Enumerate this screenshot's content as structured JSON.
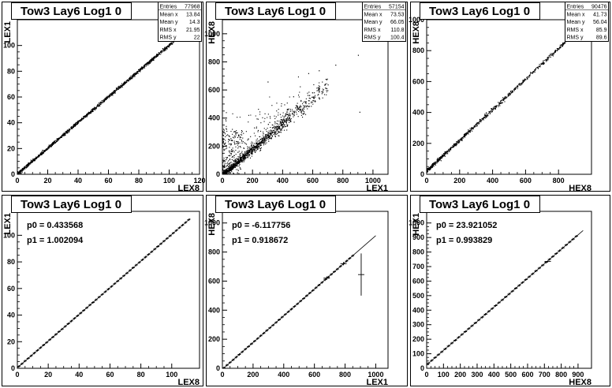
{
  "chart_data": [
    {
      "type": "scatter",
      "title": "Tow3 Lay6 Log1 0",
      "xlabel": "LEX8",
      "ylabel": "LEX1",
      "xlim": [
        0,
        120
      ],
      "ylim": [
        0,
        120
      ],
      "xticks": [
        0,
        20,
        40,
        60,
        80,
        100,
        120
      ],
      "yticks": [
        0,
        20,
        40,
        60,
        80,
        100
      ],
      "stats": [
        {
          "label": "Entries",
          "value": "77968"
        },
        {
          "label": "Mean x",
          "value": "13.84"
        },
        {
          "label": "Mean y",
          "value": "14.3"
        },
        {
          "label": "RMS x",
          "value": "21.95"
        },
        {
          "label": "RMS y",
          "value": "22"
        }
      ],
      "trend": {
        "p0": 0.43,
        "p1": 1.0,
        "x_from": 0,
        "x_to": 115
      }
    },
    {
      "type": "scatter",
      "title": "Tow3 Lay6 Log1 0",
      "xlabel": "LEX1",
      "ylabel": "HEX8",
      "xlim": [
        0,
        1100
      ],
      "ylim": [
        0,
        1100
      ],
      "xticks": [
        0,
        200,
        400,
        600,
        800,
        1000
      ],
      "yticks": [
        0,
        200,
        400,
        600,
        800,
        1000
      ],
      "stats": [
        {
          "label": "Entries",
          "value": "57154"
        },
        {
          "label": "Mean x",
          "value": "73.53"
        },
        {
          "label": "Mean y",
          "value": "66.05"
        },
        {
          "label": "RMS x",
          "value": "110.8"
        },
        {
          "label": "RMS y",
          "value": "100.4"
        }
      ],
      "trend": {
        "p0": -6.1,
        "p1": 0.92,
        "x_from": 0,
        "x_to": 900
      }
    },
    {
      "type": "scatter",
      "title": "Tow3 Lay6 Log1 0",
      "xlabel": "HEX8",
      "ylabel": "HEX8",
      "xlim": [
        0,
        1000
      ],
      "ylim": [
        0,
        1000
      ],
      "xticks": [
        0,
        200,
        400,
        600,
        800
      ],
      "yticks": [
        0,
        200,
        400,
        600,
        800,
        1000
      ],
      "stats": [
        {
          "label": "Entries",
          "value": "90476"
        },
        {
          "label": "Mean x",
          "value": "41.73"
        },
        {
          "label": "Mean y",
          "value": "56.04"
        },
        {
          "label": "RMS x",
          "value": "85.9"
        },
        {
          "label": "RMS y",
          "value": "89.6"
        }
      ],
      "trend": {
        "p0": 23.9,
        "p1": 0.99,
        "x_from": 0,
        "x_to": 900
      }
    },
    {
      "type": "line",
      "title": "Tow3 Lay6 Log1 0",
      "xlabel": "LEX8",
      "ylabel": "LEX1",
      "xlim": [
        0,
        118
      ],
      "ylim": [
        0,
        118
      ],
      "xticks": [
        0,
        20,
        40,
        60,
        80,
        100
      ],
      "yticks": [
        0,
        20,
        40,
        60,
        80,
        100
      ],
      "fit": {
        "p0_label": "p0 = 0.433568",
        "p1_label": "p1 = 1.002094",
        "p0": 0.433568,
        "p1": 1.002094,
        "x_from": 0,
        "x_to": 112
      },
      "profile": {
        "x_from": 1,
        "x_to": 111,
        "step": 2
      },
      "outliers": []
    },
    {
      "type": "line",
      "title": "Tow3 Lay6 Log1 0",
      "xlabel": "LEX1",
      "ylabel": "HEX8",
      "xlim": [
        0,
        1080
      ],
      "ylim": [
        0,
        1080
      ],
      "xticks": [
        0,
        200,
        400,
        600,
        800,
        1000
      ],
      "yticks": [
        0,
        200,
        400,
        600,
        800,
        1000
      ],
      "fit": {
        "p0_label": "p0 = -6.117756",
        "p1_label": "p1 = 0.918672",
        "p0": -6.117756,
        "p1": 0.918672,
        "x_from": 0,
        "x_to": 1000
      },
      "profile": {
        "x_from": 10,
        "x_to": 860,
        "step": 20
      },
      "outliers": [
        {
          "x": 680,
          "y": 620,
          "err": 12
        },
        {
          "x": 790,
          "y": 720,
          "err": 12
        },
        {
          "x": 905,
          "y": 645,
          "err": 145
        }
      ]
    },
    {
      "type": "line",
      "title": "Tow3 Lay6 Log1 0",
      "xlabel": "HEX8",
      "ylabel": "HEX1",
      "xlim": [
        0,
        980
      ],
      "ylim": [
        0,
        1080
      ],
      "xticks": [
        0,
        100,
        200,
        300,
        400,
        500,
        600,
        700,
        800,
        900
      ],
      "yticks": [
        0,
        100,
        200,
        300,
        400,
        500,
        600,
        700,
        800,
        900,
        1000
      ],
      "fit": {
        "p0_label": "p0 = 23.921052",
        "p1_label": "p1 = 0.993829",
        "p0": 23.921052,
        "p1": 0.993829,
        "x_from": 0,
        "x_to": 930
      },
      "profile": {
        "x_from": 10,
        "x_to": 900,
        "step": 20
      },
      "outliers": [
        {
          "x": 720,
          "y": 735,
          "err": 6
        }
      ]
    }
  ]
}
